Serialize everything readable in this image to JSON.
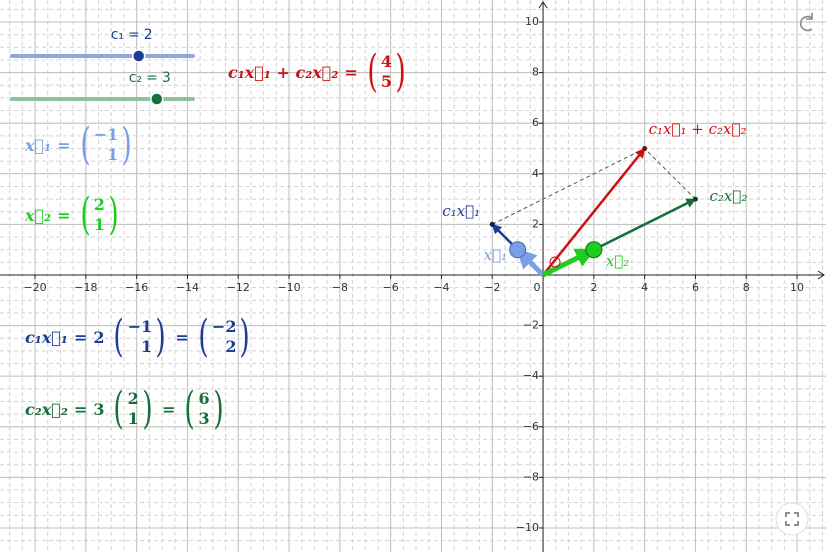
{
  "params": [
    {
      "name": "c₁",
      "value": 2,
      "color": "#1c3d94",
      "track": "#8fa8d8"
    },
    {
      "name": "c₂",
      "value": 3,
      "color": "#16703a",
      "track": "#8fc09f"
    }
  ],
  "symbols": {
    "equals": "="
  },
  "vectors": {
    "x1": {
      "label": "x⃗₁",
      "components": [
        {
          "value": -1,
          "label": "−1"
        },
        1
      ],
      "color": "#7a9eea"
    },
    "x2": {
      "label": "x⃗₂",
      "components": [
        2,
        1
      ],
      "color": "#1fcc1f"
    },
    "c1x1": {
      "label": "c₁x⃗₁",
      "components": [
        {
          "value": -2,
          "label": "−2"
        },
        2
      ],
      "color": "#1c3d94"
    },
    "c2x2": {
      "label": "c₂x⃗₂",
      "components": [
        6,
        3
      ],
      "color": "#16703a"
    },
    "sum": {
      "label": "c₁x⃗₁ + c₂x⃗₂",
      "components": [
        4,
        5
      ],
      "color": "#cc1111"
    }
  },
  "axes": {
    "xlim": [
      -21.38,
      11.14
    ],
    "ylim": [
      -10.95,
      10.87
    ],
    "xticks": [
      {
        "value": -20,
        "label": "−20"
      },
      {
        "value": -18,
        "label": "−18"
      },
      {
        "value": -16,
        "label": "−16"
      },
      {
        "value": -14,
        "label": "−14"
      },
      {
        "value": -12,
        "label": "−12"
      },
      {
        "value": -10,
        "label": "−10"
      },
      {
        "value": -8,
        "label": "−8"
      },
      {
        "value": -6,
        "label": "−6"
      },
      {
        "value": -4,
        "label": "−4"
      },
      {
        "value": -2,
        "label": "−2"
      },
      0,
      2,
      4,
      6,
      8,
      10
    ],
    "yticks": [
      {
        "value": -10,
        "label": "−10"
      },
      {
        "value": -8,
        "label": "−8"
      },
      {
        "value": -6,
        "label": "−6"
      },
      {
        "value": -4,
        "label": "−4"
      },
      {
        "value": -2,
        "label": "−2"
      },
      2,
      4,
      6,
      8,
      10
    ]
  }
}
